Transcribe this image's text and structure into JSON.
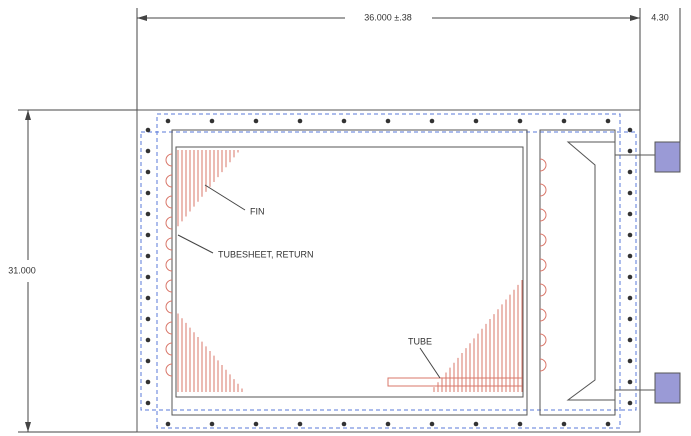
{
  "dimensions": {
    "width": "36.000 ±.38",
    "right_offset": "4.30",
    "height": "31.000"
  },
  "labels": {
    "fin": "FIN",
    "tubesheet": "TUBESHEET, RETURN",
    "tube": "TUBE"
  }
}
